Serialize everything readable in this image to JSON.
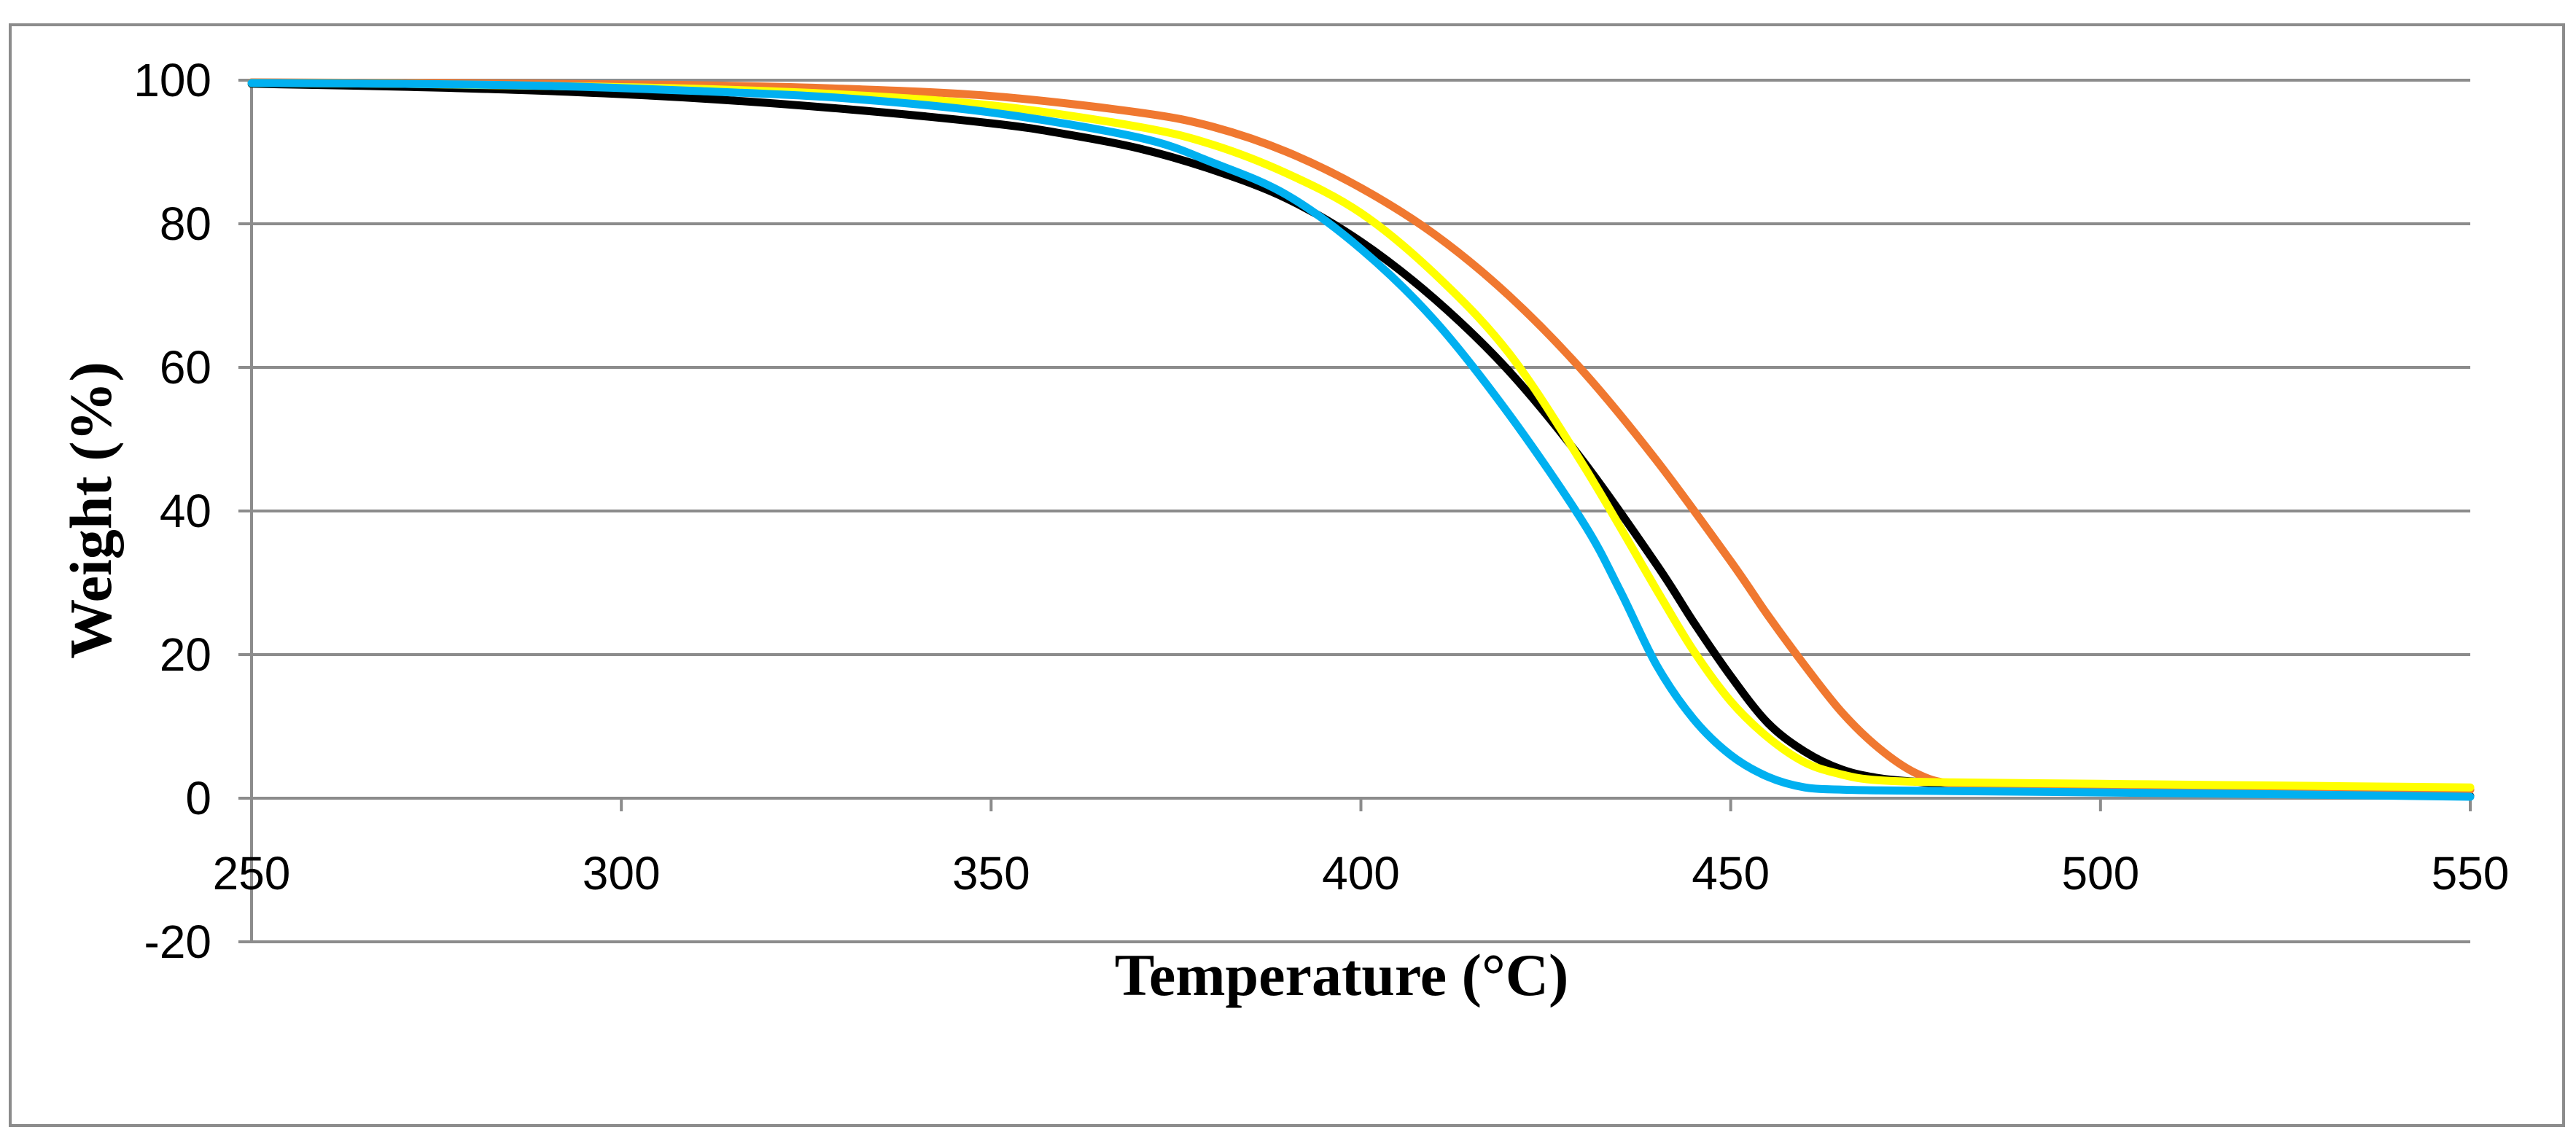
{
  "chart_data": {
    "type": "line",
    "title": "",
    "xlabel": "Temperature (°C)",
    "ylabel": "Weight (%)",
    "xlim": [
      250,
      550
    ],
    "ylim": [
      -20,
      100
    ],
    "x_ticks": [
      250,
      300,
      350,
      400,
      450,
      500,
      550
    ],
    "y_ticks": [
      -20,
      0,
      20,
      40,
      60,
      80,
      100
    ],
    "x_tick_labels": [
      "250",
      "300",
      "350",
      "400",
      "450",
      "500",
      "550"
    ],
    "y_tick_labels": [
      "-20",
      "0",
      "20",
      "40",
      "60",
      "80",
      "100"
    ],
    "grid": true,
    "legend": "none",
    "series": [
      {
        "name": "black",
        "color": "#000000",
        "x": [
          250,
          270,
          290,
          310,
          330,
          350,
          360,
          370,
          380,
          390,
          400,
          410,
          420,
          430,
          440,
          445,
          450,
          455,
          460,
          465,
          470,
          475,
          480,
          500,
          520,
          550
        ],
        "y": [
          99.5,
          99.1,
          98.5,
          97.5,
          96.0,
          94.0,
          92.5,
          90.5,
          87.5,
          83.5,
          77.5,
          69.5,
          59.5,
          47.0,
          32.5,
          24.5,
          17.0,
          10.5,
          6.5,
          4.0,
          2.8,
          2.3,
          2.0,
          1.5,
          1.0,
          0.3
        ]
      },
      {
        "name": "orange",
        "color": "#F07830",
        "x": [
          250,
          270,
          290,
          310,
          330,
          350,
          370,
          380,
          390,
          400,
          410,
          420,
          430,
          440,
          450,
          455,
          460,
          465,
          470,
          475,
          480,
          490,
          500,
          520,
          550
        ],
        "y": [
          99.7,
          99.6,
          99.5,
          99.3,
          98.8,
          97.8,
          95.5,
          93.5,
          90.0,
          85.0,
          78.5,
          70.0,
          59.5,
          47.0,
          33.0,
          25.5,
          18.5,
          12.0,
          7.0,
          3.5,
          2.0,
          1.6,
          1.5,
          1.3,
          1.2
        ]
      },
      {
        "name": "yellow",
        "color": "#FFFF00",
        "x": [
          250,
          270,
          290,
          310,
          330,
          350,
          370,
          380,
          390,
          400,
          410,
          420,
          430,
          440,
          445,
          450,
          455,
          460,
          465,
          470,
          480,
          500,
          520,
          550
        ],
        "y": [
          99.6,
          99.5,
          99.2,
          98.8,
          98.0,
          96.5,
          93.5,
          91.0,
          87.0,
          81.5,
          73.0,
          62.0,
          46.5,
          29.0,
          20.5,
          13.5,
          8.5,
          5.0,
          3.3,
          2.5,
          2.2,
          2.0,
          1.8,
          1.5
        ]
      },
      {
        "name": "blue",
        "color": "#00B0F0",
        "x": [
          250,
          270,
          290,
          310,
          330,
          350,
          370,
          380,
          390,
          400,
          410,
          420,
          430,
          435,
          440,
          445,
          450,
          455,
          460,
          465,
          470,
          480,
          500,
          520,
          550
        ],
        "y": [
          99.6,
          99.5,
          99.2,
          98.5,
          97.5,
          95.5,
          92.0,
          88.5,
          84.0,
          76.5,
          66.5,
          53.5,
          38.5,
          29.0,
          18.5,
          11.0,
          6.0,
          3.0,
          1.5,
          1.2,
          1.1,
          1.0,
          0.8,
          0.6,
          0.2
        ]
      }
    ]
  }
}
